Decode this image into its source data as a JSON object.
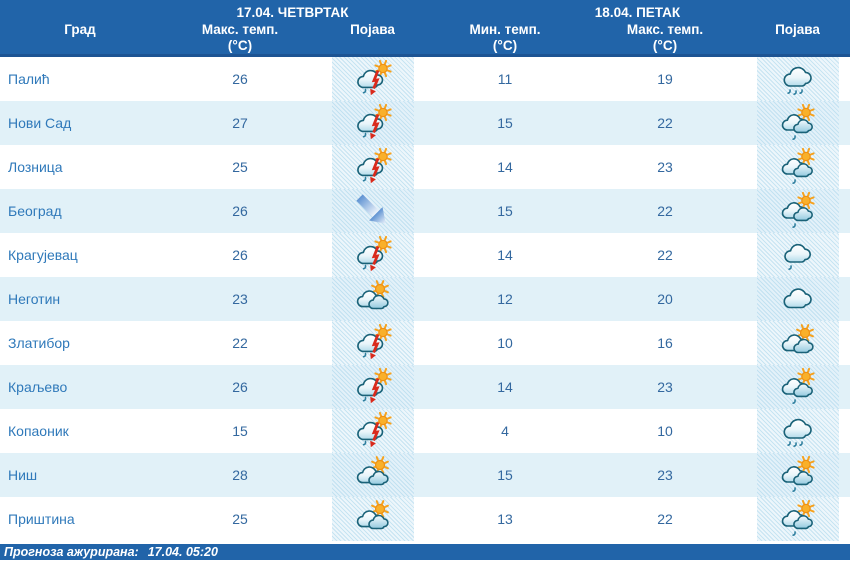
{
  "table": {
    "day1": {
      "date_label": "17.04. ЧЕТВРТАК"
    },
    "day2": {
      "date_label": "18.04. ПЕТАК"
    },
    "columns": {
      "city": "Град",
      "max_temp": "Макс. темп.",
      "min_temp": "Мин. темп.",
      "unit": "(°C)",
      "appearance": "Појава"
    },
    "rows": [
      {
        "city": "Палић",
        "d1_max": "26",
        "d1_icon": "thunderstorm",
        "d2_min": "11",
        "d2_max": "19",
        "d2_icon": "cloudy-rain"
      },
      {
        "city": "Нови Сад",
        "d1_max": "27",
        "d1_icon": "thunderstorm",
        "d2_min": "15",
        "d2_max": "22",
        "d2_icon": "partly-cloudy-rain"
      },
      {
        "city": "Лозница",
        "d1_max": "25",
        "d1_icon": "thunderstorm",
        "d2_min": "14",
        "d2_max": "23",
        "d2_icon": "partly-cloudy-rain"
      },
      {
        "city": "Београд",
        "d1_max": "26",
        "d1_icon": "wind-arrow",
        "d2_min": "15",
        "d2_max": "22",
        "d2_icon": "partly-cloudy-rain"
      },
      {
        "city": "Крагујевац",
        "d1_max": "26",
        "d1_icon": "thunderstorm",
        "d2_min": "14",
        "d2_max": "22",
        "d2_icon": "cloudy-light-rain"
      },
      {
        "city": "Неготин",
        "d1_max": "23",
        "d1_icon": "partly-cloudy",
        "d2_min": "12",
        "d2_max": "20",
        "d2_icon": "cloudy"
      },
      {
        "city": "Златибор",
        "d1_max": "22",
        "d1_icon": "thunderstorm",
        "d2_min": "10",
        "d2_max": "16",
        "d2_icon": "partly-cloudy"
      },
      {
        "city": "Краљево",
        "d1_max": "26",
        "d1_icon": "thunderstorm",
        "d2_min": "14",
        "d2_max": "23",
        "d2_icon": "partly-cloudy-rain"
      },
      {
        "city": "Копаоник",
        "d1_max": "15",
        "d1_icon": "thunderstorm",
        "d2_min": "4",
        "d2_max": "10",
        "d2_icon": "cloudy-rain"
      },
      {
        "city": "Ниш",
        "d1_max": "28",
        "d1_icon": "partly-cloudy",
        "d2_min": "15",
        "d2_max": "23",
        "d2_icon": "partly-cloudy-rain"
      },
      {
        "city": "Приштина",
        "d1_max": "25",
        "d1_icon": "partly-cloudy",
        "d2_min": "13",
        "d2_max": "22",
        "d2_icon": "partly-cloudy-rain"
      }
    ]
  },
  "footer": {
    "updated_label": "Прогноза ажурирана:",
    "updated_value": "17.04. 05:20"
  },
  "colors": {
    "header_bg": "#2164a9",
    "footer_bg": "#2164a9",
    "row_alt_bg": "#e1f1f8",
    "city_text": "#2f79ba",
    "temp_text": "#33689f",
    "thunder_red": "#d92a1c",
    "sun_orange": "#f6a21e"
  }
}
